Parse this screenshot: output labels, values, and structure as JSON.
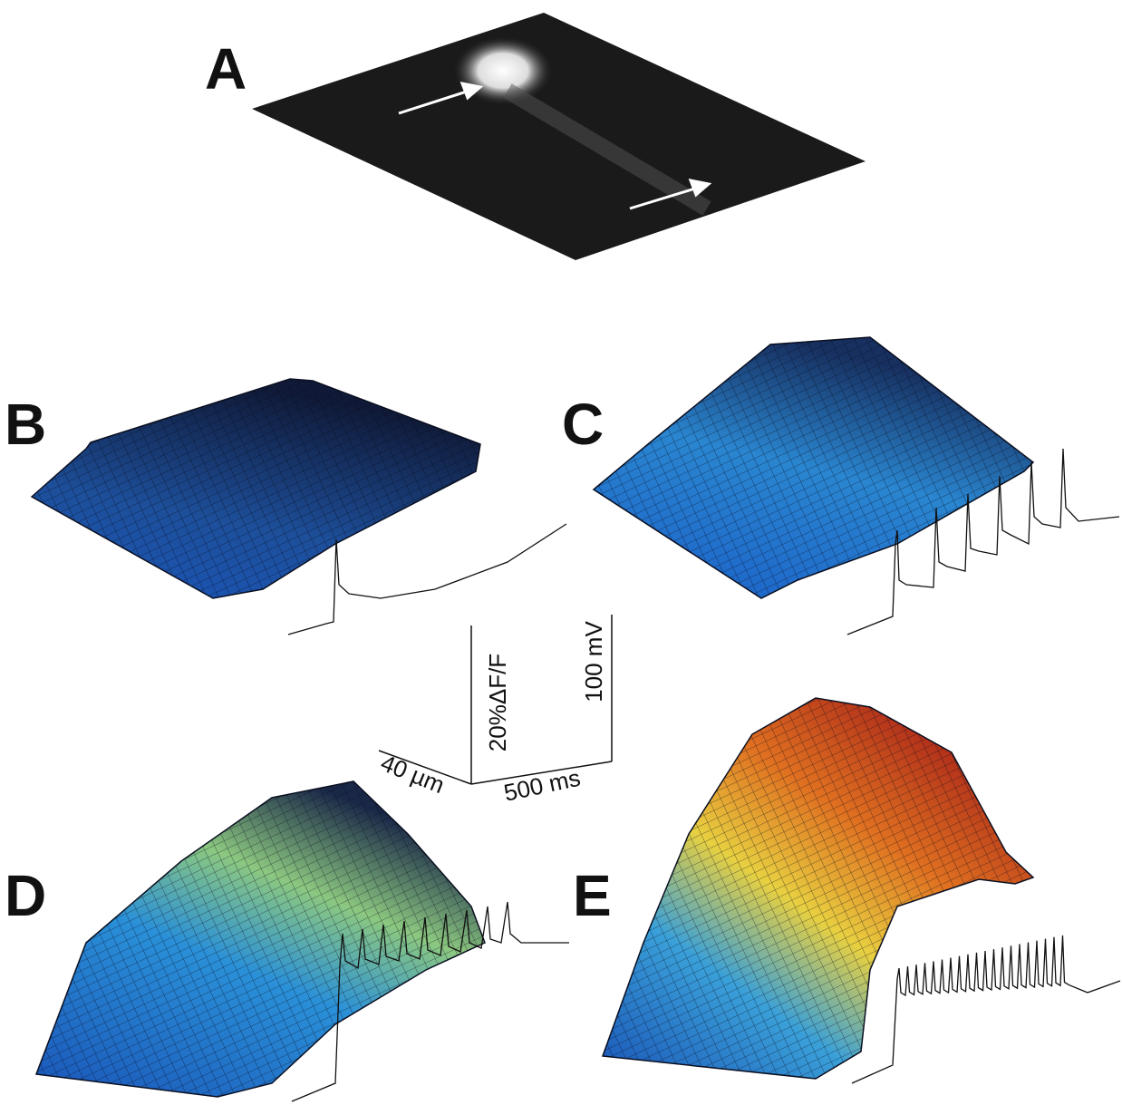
{
  "panels": [
    {
      "label": "A"
    },
    {
      "label": "B"
    },
    {
      "label": "C"
    },
    {
      "label": "D"
    },
    {
      "label": "E"
    }
  ],
  "scale_bar": {
    "fluorescence": "20%ΔF/F",
    "voltage": "100 mV",
    "distance": "40 µm",
    "time": "500 ms"
  }
}
